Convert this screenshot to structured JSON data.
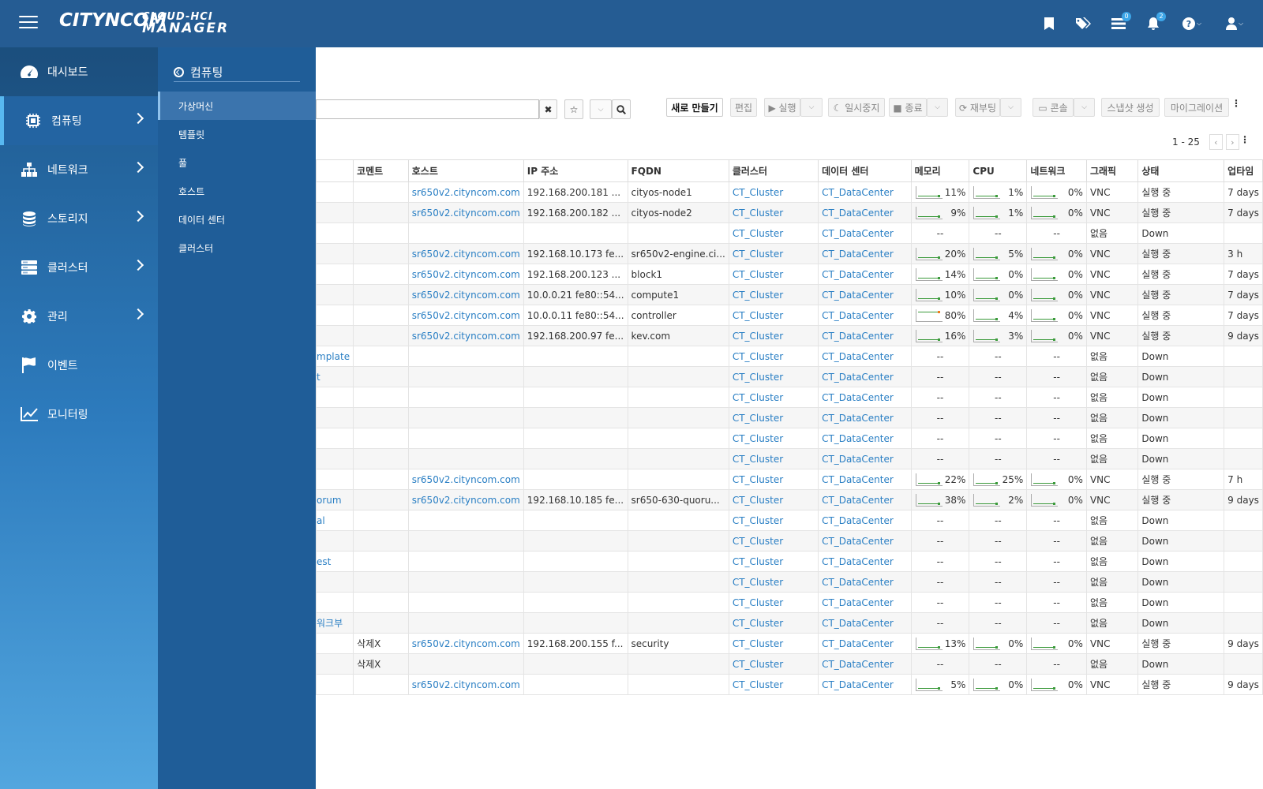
{
  "header": {
    "logo_left": "CITYNCOM",
    "logo_top": "CLOUD-HCI",
    "logo_bottom": "MANAGER",
    "badges": {
      "tasks": "0",
      "alerts": "2"
    }
  },
  "sidebar": {
    "items": [
      {
        "label": "대시보드",
        "icon": "dashboard-icon"
      },
      {
        "label": "컴퓨팅",
        "icon": "chip-icon"
      },
      {
        "label": "네트워크",
        "icon": "network-icon"
      },
      {
        "label": "스토리지",
        "icon": "database-icon"
      },
      {
        "label": "클러스터",
        "icon": "server-icon"
      },
      {
        "label": "관리",
        "icon": "gear-icon"
      },
      {
        "label": "이벤트",
        "icon": "flag-icon"
      },
      {
        "label": "모니터링",
        "icon": "chart-icon"
      }
    ]
  },
  "subnav": {
    "title": "컴퓨팅",
    "items": [
      "가상머신",
      "템플릿",
      "풀",
      "호스트",
      "데이터 센터",
      "클러스터"
    ]
  },
  "toolbar": {
    "clear": "✖",
    "create": "새로 만들기",
    "edit": "편집",
    "run": "▶ 실행",
    "pause": "☾ 일시중지",
    "stop": "■ 종료",
    "reboot": "⟳ 재부팅",
    "console": "▭ 콘솔",
    "snapshot": "스냅샷 생성",
    "migrate": "마이그레이션"
  },
  "pager": {
    "range": "1 - 25"
  },
  "table": {
    "headers": [
      "",
      "코멘트",
      "호스트",
      "IP 주소",
      "FQDN",
      "클러스터",
      "데이터 센터",
      "메모리",
      "CPU",
      "네트워크",
      "그래픽",
      "상태",
      "업타임"
    ],
    "rows": [
      [
        "",
        "",
        "sr650v2.cityncom.com",
        "192.168.200.181 ...",
        "cityos-node1",
        "CT_Cluster",
        "CT_DataCenter",
        "11%",
        "1%",
        "0%",
        "VNC",
        "실행 중",
        "7 days"
      ],
      [
        "",
        "",
        "sr650v2.cityncom.com",
        "192.168.200.182 ...",
        "cityos-node2",
        "CT_Cluster",
        "CT_DataCenter",
        "9%",
        "1%",
        "0%",
        "VNC",
        "실행 중",
        "7 days"
      ],
      [
        "",
        "",
        "",
        "",
        "",
        "CT_Cluster",
        "CT_DataCenter",
        "--",
        "--",
        "--",
        "없음",
        "Down",
        ""
      ],
      [
        "",
        "",
        "sr650v2.cityncom.com",
        "192.168.10.173 fe...",
        "sr650v2-engine.ci...",
        "CT_Cluster",
        "CT_DataCenter",
        "20%",
        "5%",
        "0%",
        "VNC",
        "실행 중",
        "3 h"
      ],
      [
        "",
        "",
        "sr650v2.cityncom.com",
        "192.168.200.123 ...",
        "block1",
        "CT_Cluster",
        "CT_DataCenter",
        "14%",
        "0%",
        "0%",
        "VNC",
        "실행 중",
        "7 days"
      ],
      [
        "",
        "",
        "sr650v2.cityncom.com",
        "10.0.0.21 fe80::54...",
        "compute1",
        "CT_Cluster",
        "CT_DataCenter",
        "10%",
        "0%",
        "0%",
        "VNC",
        "실행 중",
        "7 days"
      ],
      [
        "",
        "",
        "sr650v2.cityncom.com",
        "10.0.0.11 fe80::54...",
        "controller",
        "CT_Cluster",
        "CT_DataCenter",
        "80%",
        "4%",
        "0%",
        "VNC",
        "실행 중",
        "7 days"
      ],
      [
        "",
        "",
        "sr650v2.cityncom.com",
        "192.168.200.97 fe...",
        "kev.com",
        "CT_Cluster",
        "CT_DataCenter",
        "16%",
        "3%",
        "0%",
        "VNC",
        "실행 중",
        "9 days"
      ],
      [
        "mplate",
        "",
        "",
        "",
        "",
        "CT_Cluster",
        "CT_DataCenter",
        "--",
        "--",
        "--",
        "없음",
        "Down",
        ""
      ],
      [
        "t",
        "",
        "",
        "",
        "",
        "CT_Cluster",
        "CT_DataCenter",
        "--",
        "--",
        "--",
        "없음",
        "Down",
        ""
      ],
      [
        "",
        "",
        "",
        "",
        "",
        "CT_Cluster",
        "CT_DataCenter",
        "--",
        "--",
        "--",
        "없음",
        "Down",
        ""
      ],
      [
        "",
        "",
        "",
        "",
        "",
        "CT_Cluster",
        "CT_DataCenter",
        "--",
        "--",
        "--",
        "없음",
        "Down",
        ""
      ],
      [
        "",
        "",
        "",
        "",
        "",
        "CT_Cluster",
        "CT_DataCenter",
        "--",
        "--",
        "--",
        "없음",
        "Down",
        ""
      ],
      [
        "",
        "",
        "",
        "",
        "",
        "CT_Cluster",
        "CT_DataCenter",
        "--",
        "--",
        "--",
        "없음",
        "Down",
        ""
      ],
      [
        "",
        "",
        "sr650v2.cityncom.com",
        "",
        "",
        "CT_Cluster",
        "CT_DataCenter",
        "22%",
        "25%",
        "0%",
        "VNC",
        "실행 중",
        "7 h"
      ],
      [
        "orum",
        "",
        "sr650v2.cityncom.com",
        "192.168.10.185 fe...",
        "sr650-630-quoru...",
        "CT_Cluster",
        "CT_DataCenter",
        "38%",
        "2%",
        "0%",
        "VNC",
        "실행 중",
        "9 days"
      ],
      [
        "al",
        "",
        "",
        "",
        "",
        "CT_Cluster",
        "CT_DataCenter",
        "--",
        "--",
        "--",
        "없음",
        "Down",
        ""
      ],
      [
        "",
        "",
        "",
        "",
        "",
        "CT_Cluster",
        "CT_DataCenter",
        "--",
        "--",
        "--",
        "없음",
        "Down",
        ""
      ],
      [
        "est",
        "",
        "",
        "",
        "",
        "CT_Cluster",
        "CT_DataCenter",
        "--",
        "--",
        "--",
        "없음",
        "Down",
        ""
      ],
      [
        "",
        "",
        "",
        "",
        "",
        "CT_Cluster",
        "CT_DataCenter",
        "--",
        "--",
        "--",
        "없음",
        "Down",
        ""
      ],
      [
        "",
        "",
        "",
        "",
        "",
        "CT_Cluster",
        "CT_DataCenter",
        "--",
        "--",
        "--",
        "없음",
        "Down",
        ""
      ],
      [
        "워크부",
        "",
        "",
        "",
        "",
        "CT_Cluster",
        "CT_DataCenter",
        "--",
        "--",
        "--",
        "없음",
        "Down",
        ""
      ],
      [
        "",
        "삭제X",
        "sr650v2.cityncom.com",
        "192.168.200.155 f...",
        "security",
        "CT_Cluster",
        "CT_DataCenter",
        "13%",
        "0%",
        "0%",
        "VNC",
        "실행 중",
        "9 days"
      ],
      [
        "",
        "삭제X",
        "",
        "",
        "",
        "CT_Cluster",
        "CT_DataCenter",
        "--",
        "--",
        "--",
        "없음",
        "Down",
        ""
      ],
      [
        "",
        "",
        "sr650v2.cityncom.com",
        "",
        "",
        "CT_Cluster",
        "CT_DataCenter",
        "5%",
        "0%",
        "0%",
        "VNC",
        "실행 중",
        "9 days"
      ]
    ]
  }
}
